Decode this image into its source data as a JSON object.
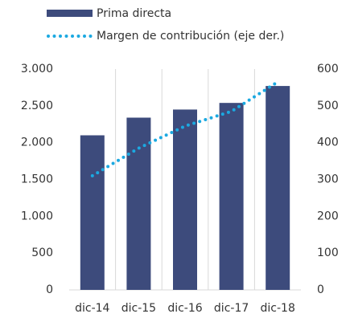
{
  "chart_data": {
    "type": "bar",
    "categories": [
      "dic-14",
      "dic-15",
      "dic-16",
      "dic-17",
      "dic-18"
    ],
    "series": [
      {
        "name": "Prima directa",
        "type": "bar",
        "color": "#3d4b7c",
        "values": [
          2100,
          2340,
          2450,
          2540,
          2770
        ]
      },
      {
        "name": "Margen de contribución (eje der.)",
        "type": "line",
        "axis": "y2",
        "color": "#1ba9e1",
        "values": [
          310,
          385,
          445,
          485,
          565
        ]
      }
    ],
    "ylim": [
      0,
      3000
    ],
    "yticks": [
      0,
      500,
      {
        "value": 1000,
        "label": "1.000"
      },
      {
        "value": 1500,
        "label": "1.500"
      },
      {
        "value": 2000,
        "label": "2.000"
      },
      {
        "value": 2500,
        "label": "2.500"
      },
      {
        "value": 3000,
        "label": "3.000"
      }
    ],
    "y2lim": [
      0,
      600
    ],
    "y2ticks": [
      0,
      100,
      200,
      300,
      400,
      500,
      600
    ],
    "grid": true,
    "legend": "top"
  }
}
